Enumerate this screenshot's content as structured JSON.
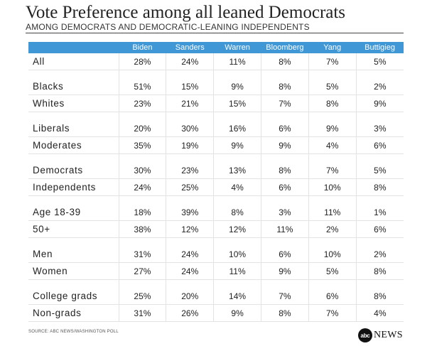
{
  "chart_data": {
    "type": "table",
    "title": "Vote Preference among all leaned Democrats",
    "subtitle": "AMONG DEMOCRATS AND DEMOCRATIC-LEANING INDEPENDENTS",
    "columns": [
      "Biden",
      "Sanders",
      "Warren",
      "Bloomberg",
      "Yang",
      "Buttigieg"
    ],
    "groups": [
      [
        {
          "label": "All",
          "values": [
            "28%",
            "24%",
            "11%",
            "8%",
            "7%",
            "5%"
          ]
        }
      ],
      [
        {
          "label": "Blacks",
          "values": [
            "51%",
            "15%",
            "9%",
            "8%",
            "5%",
            "2%"
          ]
        },
        {
          "label": "Whites",
          "values": [
            "23%",
            "21%",
            "15%",
            "7%",
            "8%",
            "9%"
          ]
        }
      ],
      [
        {
          "label": "Liberals",
          "values": [
            "20%",
            "30%",
            "16%",
            "6%",
            "9%",
            "3%"
          ]
        },
        {
          "label": "Moderates",
          "values": [
            "35%",
            "19%",
            "9%",
            "9%",
            "4%",
            "6%"
          ]
        }
      ],
      [
        {
          "label": "Democrats",
          "values": [
            "30%",
            "23%",
            "13%",
            "8%",
            "7%",
            "5%"
          ]
        },
        {
          "label": "Independents",
          "values": [
            "24%",
            "25%",
            "4%",
            "6%",
            "10%",
            "8%"
          ]
        }
      ],
      [
        {
          "label": "Age 18-39",
          "values": [
            "18%",
            "39%",
            "8%",
            "3%",
            "11%",
            "1%"
          ]
        },
        {
          "label": "50+",
          "values": [
            "38%",
            "12%",
            "12%",
            "11%",
            "2%",
            "6%"
          ]
        }
      ],
      [
        {
          "label": "Men",
          "values": [
            "31%",
            "24%",
            "10%",
            "6%",
            "10%",
            "2%"
          ]
        },
        {
          "label": "Women",
          "values": [
            "27%",
            "24%",
            "11%",
            "9%",
            "5%",
            "8%"
          ]
        }
      ],
      [
        {
          "label": "College grads",
          "values": [
            "25%",
            "20%",
            "14%",
            "7%",
            "6%",
            "8%"
          ]
        },
        {
          "label": "Non-grads",
          "values": [
            "31%",
            "26%",
            "9%",
            "8%",
            "7%",
            "4%"
          ]
        }
      ]
    ]
  },
  "source": "SOURCE: ABC NEWS/WASHINGTON POLL",
  "logo": {
    "mark": "abc",
    "text": "NEWS"
  },
  "colors": {
    "header": "#3f97d6",
    "text": "#222222"
  }
}
